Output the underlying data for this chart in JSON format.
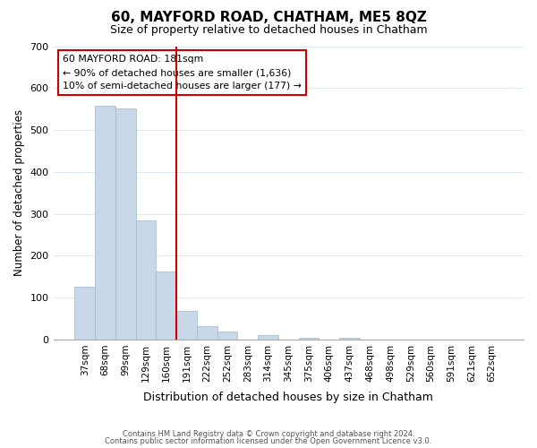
{
  "title": "60, MAYFORD ROAD, CHATHAM, ME5 8QZ",
  "subtitle": "Size of property relative to detached houses in Chatham",
  "xlabel": "Distribution of detached houses by size in Chatham",
  "ylabel": "Number of detached properties",
  "bar_color": "#c8d8e8",
  "bar_edge_color": "#a0b8cc",
  "bins": [
    "37sqm",
    "68sqm",
    "99sqm",
    "129sqm",
    "160sqm",
    "191sqm",
    "222sqm",
    "252sqm",
    "283sqm",
    "314sqm",
    "345sqm",
    "375sqm",
    "406sqm",
    "437sqm",
    "468sqm",
    "498sqm",
    "529sqm",
    "560sqm",
    "591sqm",
    "621sqm",
    "652sqm"
  ],
  "values": [
    125,
    558,
    552,
    285,
    163,
    68,
    32,
    19,
    0,
    10,
    0,
    5,
    0,
    3,
    0,
    0,
    0,
    0,
    0,
    0,
    0
  ],
  "vline_color": "#cc0000",
  "annotation_box_text": "60 MAYFORD ROAD: 181sqm\n← 90% of detached houses are smaller (1,636)\n10% of semi-detached houses are larger (177) →",
  "ylim": [
    0,
    700
  ],
  "yticks": [
    0,
    100,
    200,
    300,
    400,
    500,
    600,
    700
  ],
  "footer_line1": "Contains HM Land Registry data © Crown copyright and database right 2024.",
  "footer_line2": "Contains public sector information licensed under the Open Government Licence v3.0.",
  "background_color": "#ffffff",
  "grid_color": "#dde8f0"
}
